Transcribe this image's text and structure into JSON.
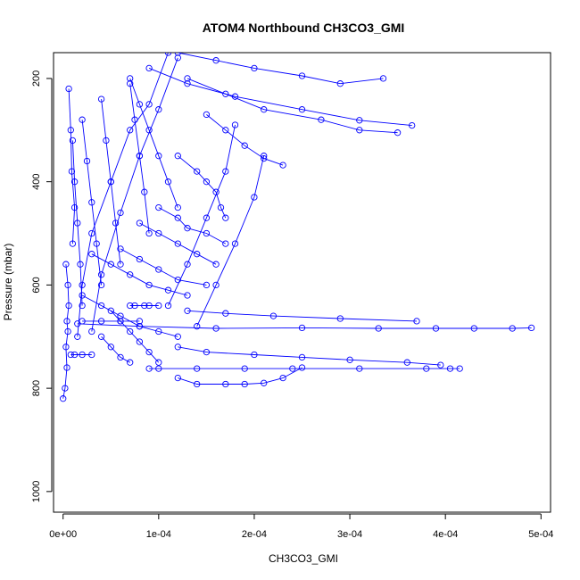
{
  "chart_data": {
    "type": "line",
    "title": "ATOM4 Northbound CH3CO3_GMI",
    "xlabel": "CH3CO3_GMI",
    "ylabel": "Pressure (mbar)",
    "xlim": [
      -1e-05,
      0.00051
    ],
    "ylim": [
      1040,
      150
    ],
    "y_reversed": true,
    "x_ticks": [
      0,
      0.0001,
      0.0002,
      0.0003,
      0.0004,
      0.0005
    ],
    "x_tick_labels": [
      "0e+00",
      "1e-04",
      "2e-04",
      "3e-04",
      "4e-04",
      "5e-04"
    ],
    "y_ticks": [
      200,
      400,
      600,
      800,
      1000
    ],
    "y_tick_labels": [
      "200",
      "400",
      "600",
      "800",
      "1000"
    ],
    "series_color": "#0000ff",
    "marker": "open-circle",
    "series": [
      {
        "x": [
          0.000365,
          0.00031,
          0.00025,
          0.00018,
          0.00013,
          9e-05
        ],
        "y": [
          291,
          281,
          260,
          235,
          210,
          180
        ]
      },
      {
        "x": [
          0.0,
          2e-06,
          4e-06,
          3e-06,
          5e-06,
          4e-06,
          6e-06,
          5e-06,
          3e-06
        ],
        "y": [
          820,
          800,
          760,
          720,
          690,
          670,
          640,
          600,
          560
        ]
      },
      {
        "x": [
          0.00049,
          0.00047,
          0.00043,
          0.00039,
          0.00033,
          0.00025,
          0.00016,
          8e-05,
          1.5e-05
        ],
        "y": [
          683,
          684,
          684,
          684,
          684,
          683,
          684,
          680,
          675
        ]
      },
      {
        "x": [
          0.000415,
          0.000405,
          0.00038,
          0.00031,
          0.00024,
          0.00019,
          0.00014,
          0.0001,
          9e-05
        ],
        "y": [
          762,
          762,
          762,
          762,
          762,
          762,
          762,
          762,
          762
        ]
      },
      {
        "x": [
          0.00025,
          0.00023,
          0.00021,
          0.00019,
          0.00017,
          0.00014,
          0.00012
        ],
        "y": [
          760,
          780,
          790,
          792,
          792,
          792,
          780
        ]
      },
      {
        "x": [
          0.000395,
          0.00036,
          0.0003,
          0.00025,
          0.0002,
          0.00015,
          0.00012
        ],
        "y": [
          755,
          750,
          745,
          740,
          735,
          730,
          720
        ]
      },
      {
        "x": [
          0.00037,
          0.00029,
          0.00022,
          0.00017,
          0.00013
        ],
        "y": [
          670,
          665,
          660,
          655,
          650
        ]
      },
      {
        "x": [
          7e-05,
          8.5e-05,
          0.0001,
          9e-05,
          7.5e-05
        ],
        "y": [
          640,
          640,
          640,
          640,
          640
        ]
      },
      {
        "x": [
          2e-05,
          4e-05,
          6e-05,
          8e-05
        ],
        "y": [
          670,
          670,
          670,
          670
        ]
      },
      {
        "x": [
          8e-06,
          1.2e-05,
          2e-05,
          3e-05
        ],
        "y": [
          735,
          735,
          735,
          735
        ]
      },
      {
        "x": [
          0.000335,
          0.00029,
          0.00025,
          0.0002,
          0.00016,
          0.00012
        ],
        "y": [
          200,
          210,
          195,
          180,
          165,
          150
        ]
      },
      {
        "x": [
          0.00035,
          0.00031,
          0.00027,
          0.00021,
          0.00017,
          0.00013
        ],
        "y": [
          305,
          300,
          280,
          260,
          230,
          200
        ]
      },
      {
        "x": [
          0.00023,
          0.00021,
          0.00019,
          0.00017,
          0.00015
        ],
        "y": [
          368,
          355,
          330,
          300,
          270
        ]
      },
      {
        "x": [
          0.00017,
          0.000165,
          0.00016,
          0.00015,
          0.00014,
          0.00012
        ],
        "y": [
          470,
          450,
          420,
          400,
          380,
          350
        ]
      },
      {
        "x": [
          0.00017,
          0.00015,
          0.00013,
          0.00012,
          0.0001
        ],
        "y": [
          520,
          500,
          490,
          470,
          450
        ]
      },
      {
        "x": [
          0.00016,
          0.00014,
          0.00012,
          0.0001,
          8e-05
        ],
        "y": [
          560,
          540,
          520,
          500,
          480
        ]
      },
      {
        "x": [
          0.00015,
          0.00012,
          0.0001,
          8e-05,
          6e-05
        ],
        "y": [
          600,
          590,
          570,
          550,
          530
        ]
      },
      {
        "x": [
          0.00013,
          0.00011,
          9e-05,
          7e-05,
          5e-05,
          3e-05
        ],
        "y": [
          620,
          610,
          600,
          580,
          560,
          540
        ]
      },
      {
        "x": [
          0.00012,
          0.0001,
          8e-05,
          6e-05,
          4e-05,
          2e-05
        ],
        "y": [
          700,
          690,
          680,
          660,
          640,
          620
        ]
      },
      {
        "x": [
          0.0001,
          9e-05,
          8e-05,
          7e-05,
          6e-05,
          5e-05
        ],
        "y": [
          750,
          730,
          710,
          690,
          670,
          650
        ]
      },
      {
        "x": [
          7e-05,
          6e-05,
          5e-05,
          4e-05
        ],
        "y": [
          750,
          740,
          720,
          700
        ]
      },
      {
        "x": [
          0.00012,
          0.00011,
          0.0001,
          9e-05,
          8e-05,
          7e-05
        ],
        "y": [
          450,
          400,
          350,
          300,
          250,
          200
        ]
      },
      {
        "x": [
          9e-05,
          8.5e-05,
          8e-05,
          7.5e-05,
          7e-05
        ],
        "y": [
          500,
          420,
          350,
          280,
          210
        ]
      },
      {
        "x": [
          6e-05,
          5.5e-05,
          5e-05,
          4.5e-05,
          4e-05
        ],
        "y": [
          560,
          480,
          400,
          320,
          240
        ]
      },
      {
        "x": [
          4e-05,
          3.5e-05,
          3e-05,
          2.5e-05,
          2e-05
        ],
        "y": [
          600,
          520,
          440,
          360,
          280
        ]
      },
      {
        "x": [
          2e-05,
          1.8e-05,
          1.5e-05,
          1.2e-05,
          1e-05
        ],
        "y": [
          640,
          560,
          480,
          400,
          320
        ]
      },
      {
        "x": [
          1e-05,
          1.2e-05,
          9e-06,
          8e-06,
          6e-06
        ],
        "y": [
          520,
          450,
          380,
          300,
          220
        ]
      },
      {
        "x": [
          1.5e-05,
          2e-05,
          3e-05,
          5e-05,
          7e-05,
          9e-05,
          0.00011
        ],
        "y": [
          700,
          600,
          500,
          400,
          300,
          250,
          150
        ]
      },
      {
        "x": [
          3e-05,
          4e-05,
          6e-05,
          8e-05,
          0.0001,
          0.00012
        ],
        "y": [
          690,
          580,
          460,
          350,
          260,
          160
        ]
      },
      {
        "x": [
          0.00011,
          0.00013,
          0.00015,
          0.00017,
          0.00018
        ],
        "y": [
          640,
          560,
          470,
          380,
          290
        ]
      },
      {
        "x": [
          0.00014,
          0.00016,
          0.00018,
          0.0002,
          0.00021
        ],
        "y": [
          680,
          600,
          520,
          430,
          350
        ]
      }
    ]
  }
}
